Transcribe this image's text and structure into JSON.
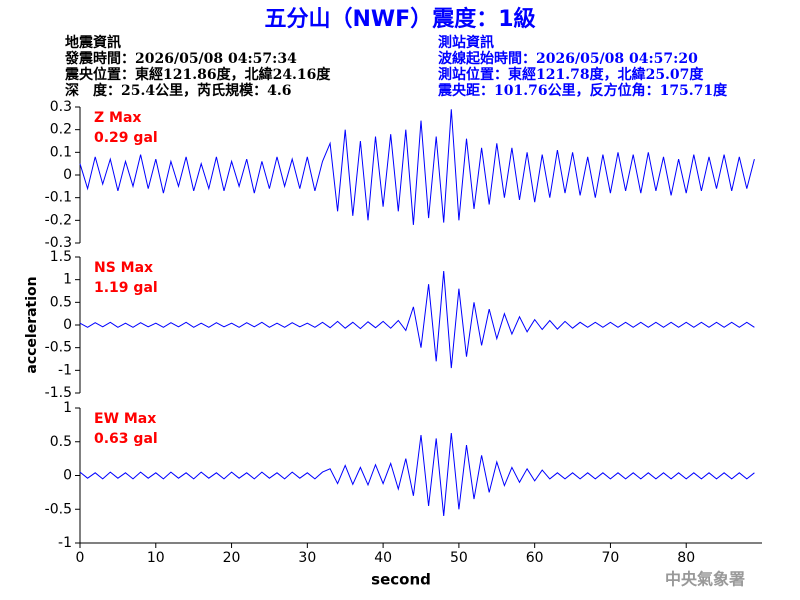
{
  "header": {
    "title": "五分山（NWF）震度：1級",
    "event": [
      "地震資訊",
      "發震時間：2026/05/08 04:57:34",
      "震央位置：東經121.86度，北緯24.16度",
      "深　度：25.4公里，芮氏規模：4.6"
    ],
    "station": [
      "測站資訊",
      "波線起始時間：2026/05/08 04:57:20",
      "測站位置：東經121.78度，北緯25.07度",
      "震央距：101.76公里，反方位角：175.71度"
    ],
    "footer": "中央氣象署"
  },
  "chart_data": [
    {
      "type": "line",
      "label": "Z Max",
      "max_label": "0.29 gal",
      "xlim": [
        0,
        90
      ],
      "ylim": [
        -0.3,
        0.3
      ],
      "yticks": [
        -0.3,
        -0.2,
        -0.1,
        0,
        0.1,
        0.2,
        0.3
      ],
      "x": [
        0,
        1,
        2,
        3,
        4,
        5,
        6,
        7,
        8,
        9,
        10,
        11,
        12,
        13,
        14,
        15,
        16,
        17,
        18,
        19,
        20,
        21,
        22,
        23,
        24,
        25,
        26,
        27,
        28,
        29,
        30,
        31,
        32,
        33,
        34,
        35,
        36,
        37,
        38,
        39,
        40,
        41,
        42,
        43,
        44,
        45,
        46,
        47,
        48,
        49,
        50,
        51,
        52,
        53,
        54,
        55,
        56,
        57,
        58,
        59,
        60,
        61,
        62,
        63,
        64,
        65,
        66,
        67,
        68,
        69,
        70,
        71,
        72,
        73,
        74,
        75,
        76,
        77,
        78,
        79,
        80,
        81,
        82,
        83,
        84,
        85,
        86,
        87,
        88,
        89
      ],
      "series": [
        {
          "color": "#0000ff",
          "values": [
            0.05,
            -0.06,
            0.08,
            -0.04,
            0.07,
            -0.07,
            0.06,
            -0.05,
            0.09,
            -0.06,
            0.07,
            -0.08,
            0.06,
            -0.05,
            0.08,
            -0.07,
            0.05,
            -0.06,
            0.08,
            -0.07,
            0.06,
            -0.05,
            0.07,
            -0.08,
            0.06,
            -0.06,
            0.08,
            -0.05,
            0.07,
            -0.06,
            0.08,
            -0.07,
            0.06,
            0.14,
            -0.16,
            0.2,
            -0.18,
            0.15,
            -0.2,
            0.17,
            -0.14,
            0.18,
            -0.16,
            0.2,
            -0.22,
            0.24,
            -0.19,
            0.17,
            -0.21,
            0.29,
            -0.2,
            0.16,
            -0.15,
            0.12,
            -0.13,
            0.14,
            -0.1,
            0.12,
            -0.11,
            0.1,
            -0.12,
            0.09,
            -0.1,
            0.11,
            -0.08,
            0.1,
            -0.09,
            0.08,
            -0.1,
            0.09,
            -0.08,
            0.1,
            -0.07,
            0.09,
            -0.08,
            0.1,
            -0.07,
            0.08,
            -0.09,
            0.07,
            -0.08,
            0.09,
            -0.07,
            0.08,
            -0.06,
            0.09,
            -0.07,
            0.08,
            -0.06,
            0.07
          ]
        }
      ]
    },
    {
      "type": "line",
      "label": "NS Max",
      "max_label": "1.19 gal",
      "ylabel": "acceleration",
      "xlim": [
        0,
        90
      ],
      "ylim": [
        -1.5,
        1.5
      ],
      "yticks": [
        -1.5,
        -1,
        -0.5,
        0,
        0.5,
        1,
        1.5
      ],
      "x": [
        0,
        1,
        2,
        3,
        4,
        5,
        6,
        7,
        8,
        9,
        10,
        11,
        12,
        13,
        14,
        15,
        16,
        17,
        18,
        19,
        20,
        21,
        22,
        23,
        24,
        25,
        26,
        27,
        28,
        29,
        30,
        31,
        32,
        33,
        34,
        35,
        36,
        37,
        38,
        39,
        40,
        41,
        42,
        43,
        44,
        45,
        46,
        47,
        48,
        49,
        50,
        51,
        52,
        53,
        54,
        55,
        56,
        57,
        58,
        59,
        60,
        61,
        62,
        63,
        64,
        65,
        66,
        67,
        68,
        69,
        70,
        71,
        72,
        73,
        74,
        75,
        76,
        77,
        78,
        79,
        80,
        81,
        82,
        83,
        84,
        85,
        86,
        87,
        88,
        89
      ],
      "series": [
        {
          "color": "#0000ff",
          "values": [
            0.04,
            -0.05,
            0.05,
            -0.04,
            0.06,
            -0.05,
            0.04,
            -0.05,
            0.05,
            -0.04,
            0.04,
            -0.05,
            0.05,
            -0.04,
            0.06,
            -0.05,
            0.04,
            -0.05,
            0.05,
            -0.04,
            0.04,
            -0.05,
            0.05,
            -0.04,
            0.06,
            -0.05,
            0.04,
            -0.05,
            0.05,
            -0.04,
            0.04,
            -0.05,
            0.06,
            -0.06,
            0.08,
            -0.07,
            0.06,
            -0.08,
            0.07,
            -0.06,
            0.08,
            -0.07,
            0.1,
            -0.12,
            0.4,
            -0.5,
            0.9,
            -0.8,
            1.19,
            -0.95,
            0.8,
            -0.7,
            0.5,
            -0.45,
            0.35,
            -0.3,
            0.25,
            -0.2,
            0.18,
            -0.15,
            0.12,
            -0.1,
            0.1,
            -0.09,
            0.08,
            -0.07,
            0.06,
            -0.05,
            0.06,
            -0.05,
            0.06,
            -0.05,
            0.06,
            -0.05,
            0.06,
            -0.05,
            0.06,
            -0.05,
            0.06,
            -0.05,
            0.06,
            -0.05,
            0.06,
            -0.05,
            0.06,
            -0.05,
            0.06,
            -0.05,
            0.06,
            -0.05
          ]
        }
      ]
    },
    {
      "type": "line",
      "label": "EW Max",
      "max_label": "0.63 gal",
      "xlabel": "second",
      "xlim": [
        0,
        90
      ],
      "ylim": [
        -1,
        1
      ],
      "yticks": [
        -1,
        -0.5,
        0,
        0.5,
        1
      ],
      "xticks": [
        0,
        10,
        20,
        30,
        40,
        50,
        60,
        70,
        80
      ],
      "x": [
        0,
        1,
        2,
        3,
        4,
        5,
        6,
        7,
        8,
        9,
        10,
        11,
        12,
        13,
        14,
        15,
        16,
        17,
        18,
        19,
        20,
        21,
        22,
        23,
        24,
        25,
        26,
        27,
        28,
        29,
        30,
        31,
        32,
        33,
        34,
        35,
        36,
        37,
        38,
        39,
        40,
        41,
        42,
        43,
        44,
        45,
        46,
        47,
        48,
        49,
        50,
        51,
        52,
        53,
        54,
        55,
        56,
        57,
        58,
        59,
        60,
        61,
        62,
        63,
        64,
        65,
        66,
        67,
        68,
        69,
        70,
        71,
        72,
        73,
        74,
        75,
        76,
        77,
        78,
        79,
        80,
        81,
        82,
        83,
        84,
        85,
        86,
        87,
        88,
        89
      ],
      "series": [
        {
          "color": "#0000ff",
          "values": [
            0.05,
            -0.04,
            0.04,
            -0.05,
            0.05,
            -0.04,
            0.04,
            -0.05,
            0.05,
            -0.04,
            0.04,
            -0.05,
            0.05,
            -0.04,
            0.04,
            -0.05,
            0.05,
            -0.04,
            0.04,
            -0.05,
            0.05,
            -0.04,
            0.04,
            -0.05,
            0.05,
            -0.04,
            0.04,
            -0.05,
            0.05,
            -0.04,
            0.04,
            -0.05,
            0.05,
            0.1,
            -0.12,
            0.15,
            -0.13,
            0.12,
            -0.14,
            0.16,
            -0.12,
            0.18,
            -0.2,
            0.25,
            -0.3,
            0.6,
            -0.45,
            0.55,
            -0.6,
            0.63,
            -0.5,
            0.45,
            -0.35,
            0.3,
            -0.25,
            0.2,
            -0.15,
            0.12,
            -0.1,
            0.1,
            -0.08,
            0.08,
            -0.05,
            0.04,
            -0.05,
            0.04,
            -0.05,
            0.04,
            -0.05,
            0.04,
            -0.05,
            0.04,
            -0.05,
            0.04,
            -0.05,
            0.04,
            -0.05,
            0.04,
            -0.05,
            0.04,
            -0.05,
            0.04,
            -0.05,
            0.04,
            -0.05,
            0.04,
            -0.05,
            0.04,
            -0.05,
            0.04
          ]
        }
      ]
    }
  ]
}
